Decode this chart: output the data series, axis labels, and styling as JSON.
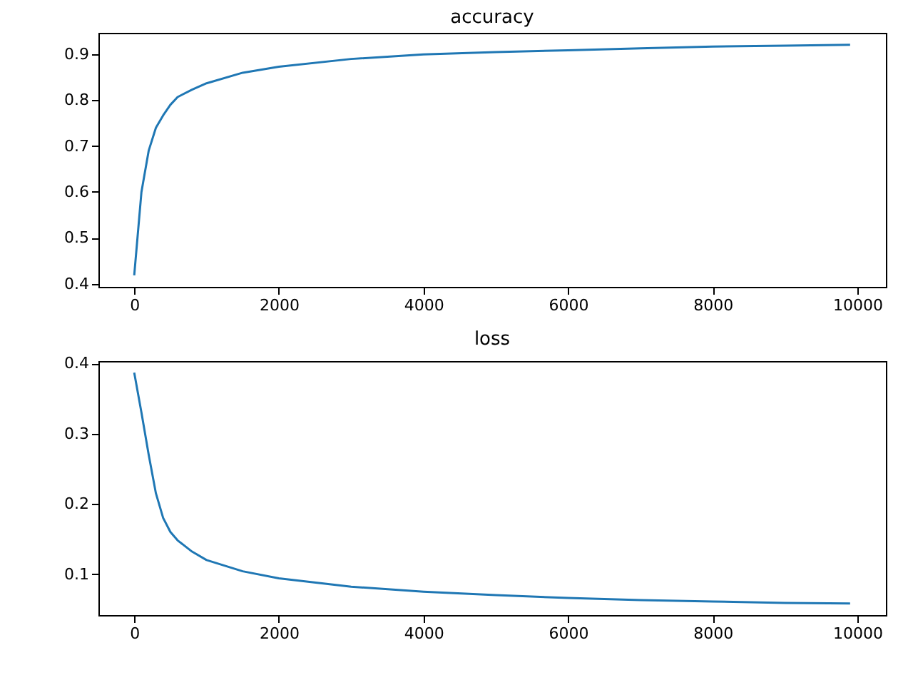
{
  "chart_data": [
    {
      "type": "line",
      "title": "accuracy",
      "x": [
        0,
        100,
        200,
        300,
        400,
        500,
        600,
        800,
        1000,
        1500,
        2000,
        3000,
        4000,
        5000,
        6000,
        7000,
        8000,
        9000,
        9900
      ],
      "series": [
        {
          "color": "#1f77b4",
          "values": [
            0.418,
            0.6,
            0.69,
            0.74,
            0.767,
            0.79,
            0.807,
            0.823,
            0.837,
            0.86,
            0.873,
            0.89,
            0.9,
            0.905,
            0.909,
            0.913,
            0.917,
            0.919,
            0.921
          ]
        }
      ],
      "xlim": [
        -495,
        10395
      ],
      "xticks": [
        0,
        2000,
        4000,
        6000,
        8000,
        10000
      ],
      "ylim": [
        0.393,
        0.947
      ],
      "yticks": [
        0.4,
        0.5,
        0.6,
        0.7,
        0.8,
        0.9
      ]
    },
    {
      "type": "line",
      "title": "loss",
      "x": [
        0,
        100,
        200,
        300,
        400,
        500,
        600,
        800,
        1000,
        1500,
        2000,
        3000,
        4000,
        5000,
        6000,
        7000,
        8000,
        9000,
        9900
      ],
      "series": [
        {
          "color": "#1f77b4",
          "values": [
            0.387,
            0.33,
            0.27,
            0.215,
            0.18,
            0.16,
            0.148,
            0.132,
            0.12,
            0.104,
            0.094,
            0.082,
            0.075,
            0.07,
            0.066,
            0.063,
            0.061,
            0.059,
            0.058
          ]
        }
      ],
      "xlim": [
        -495,
        10395
      ],
      "xticks": [
        0,
        2000,
        4000,
        6000,
        8000,
        10000
      ],
      "ylim": [
        0.0416,
        0.4035
      ],
      "yticks": [
        0.1,
        0.2,
        0.3,
        0.4
      ]
    }
  ]
}
